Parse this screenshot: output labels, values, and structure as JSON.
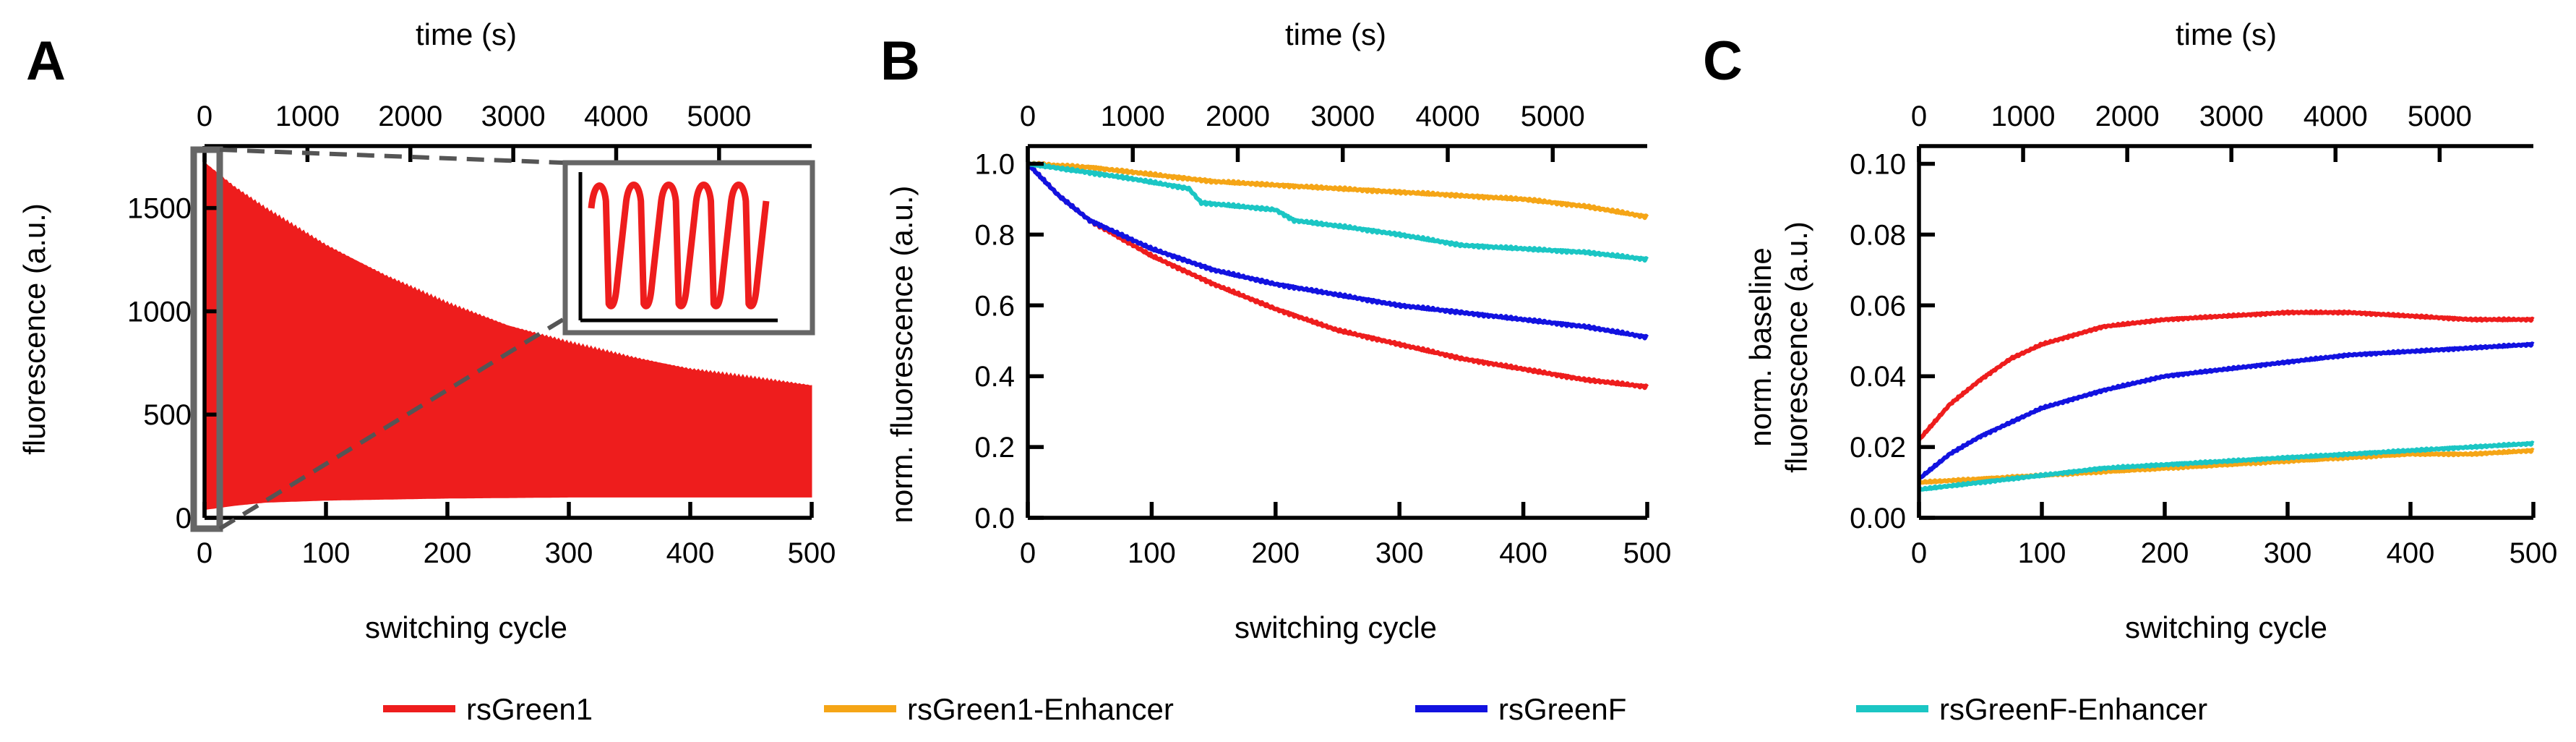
{
  "figure": {
    "legend": [
      {
        "name": "rsGreen1",
        "color": "#ee1d1d"
      },
      {
        "name": "rsGreen1-Enhancer",
        "color": "#f5a516"
      },
      {
        "name": "rsGreenF",
        "color": "#1212e0"
      },
      {
        "name": "rsGreenF-Enhancer",
        "color": "#1bc6c4"
      }
    ]
  },
  "chart_data": [
    {
      "panel": "A",
      "type": "area",
      "title": "",
      "xlabel": "switching cycle",
      "ylabel": "fluorescence (a.u.)",
      "x2label": "time (s)",
      "xlim": [
        0,
        500
      ],
      "ylim": [
        0,
        1800
      ],
      "x2lim": [
        0,
        5900
      ],
      "xticks": [
        0,
        100,
        200,
        300,
        400,
        500
      ],
      "xtick_labels": [
        "0",
        "100",
        "200",
        "300",
        "400",
        "500"
      ],
      "yticks": [
        0,
        500,
        1000,
        1500
      ],
      "ytick_labels": [
        "0",
        "500",
        "1000",
        "1500"
      ],
      "x2ticks": [
        0,
        1000,
        2000,
        3000,
        4000,
        5000
      ],
      "x2tick_labels": [
        "0",
        "1000",
        "2000",
        "3000",
        "4000",
        "5000"
      ],
      "series": [
        {
          "name": "rsGreen1 max",
          "color": "#ee1d1d",
          "x": [
            0,
            25,
            50,
            100,
            150,
            200,
            250,
            300,
            350,
            400,
            450,
            500
          ],
          "values": [
            1720,
            1600,
            1500,
            1320,
            1170,
            1040,
            930,
            850,
            780,
            720,
            680,
            640
          ]
        },
        {
          "name": "rsGreen1 min",
          "color": "#ee1d1d",
          "x": [
            0,
            25,
            50,
            100,
            200,
            300,
            400,
            500
          ],
          "values": [
            40,
            60,
            75,
            85,
            95,
            100,
            100,
            100
          ]
        }
      ],
      "annotations": {
        "inset": "zoom of first switching cycles (0-5)",
        "zoom_cycles": 5
      }
    },
    {
      "panel": "B",
      "type": "line",
      "title": "",
      "xlabel": "switching cycle",
      "ylabel": "norm. fluorescence (a.u.)",
      "x2label": "time (s)",
      "xlim": [
        0,
        500
      ],
      "ylim": [
        0,
        1.05
      ],
      "x2lim": [
        0,
        5900
      ],
      "xticks": [
        0,
        100,
        200,
        300,
        400,
        500
      ],
      "xtick_labels": [
        "0",
        "100",
        "200",
        "300",
        "400",
        "500"
      ],
      "yticks": [
        0,
        0.2,
        0.4,
        0.6,
        0.8,
        1.0
      ],
      "ytick_labels": [
        "0.0",
        "0.2",
        "0.4",
        "0.6",
        "0.8",
        "1.0"
      ],
      "x2ticks": [
        0,
        1000,
        2000,
        3000,
        4000,
        5000
      ],
      "x2tick_labels": [
        "0",
        "1000",
        "2000",
        "3000",
        "4000",
        "5000"
      ],
      "series": [
        {
          "name": "rsGreen1",
          "color": "#ee1d1d",
          "x": [
            0,
            25,
            50,
            100,
            150,
            200,
            250,
            300,
            350,
            400,
            450,
            500
          ],
          "values": [
            1.0,
            0.91,
            0.84,
            0.74,
            0.66,
            0.59,
            0.53,
            0.49,
            0.45,
            0.42,
            0.39,
            0.37
          ]
        },
        {
          "name": "rsGreen1-Enhancer",
          "color": "#f5a516",
          "x": [
            0,
            50,
            100,
            150,
            200,
            250,
            300,
            350,
            400,
            450,
            500
          ],
          "values": [
            1.0,
            0.99,
            0.97,
            0.95,
            0.94,
            0.93,
            0.92,
            0.91,
            0.9,
            0.88,
            0.85
          ]
        },
        {
          "name": "rsGreenF",
          "color": "#1212e0",
          "x": [
            0,
            25,
            50,
            75,
            100,
            150,
            200,
            250,
            300,
            350,
            400,
            450,
            500
          ],
          "values": [
            1.0,
            0.91,
            0.84,
            0.8,
            0.76,
            0.7,
            0.66,
            0.63,
            0.6,
            0.58,
            0.56,
            0.54,
            0.51
          ]
        },
        {
          "name": "rsGreenF-Enhancer",
          "color": "#1bc6c4",
          "x": [
            0,
            40,
            80,
            130,
            140,
            200,
            215,
            260,
            300,
            350,
            400,
            450,
            500
          ],
          "values": [
            1.0,
            0.98,
            0.96,
            0.93,
            0.89,
            0.87,
            0.84,
            0.82,
            0.8,
            0.77,
            0.76,
            0.75,
            0.73
          ]
        }
      ]
    },
    {
      "panel": "C",
      "type": "line",
      "title": "",
      "xlabel": "switching cycle",
      "ylabel": "norm. baseline fluorescence (a.u.)",
      "ylabel_lines": [
        "norm. baseline",
        "fluorescence (a.u.)"
      ],
      "x2label": "time (s)",
      "xlim": [
        0,
        500
      ],
      "ylim": [
        0,
        0.105
      ],
      "x2lim": [
        0,
        5900
      ],
      "xticks": [
        0,
        100,
        200,
        300,
        400,
        500
      ],
      "xtick_labels": [
        "0",
        "100",
        "200",
        "300",
        "400",
        "500"
      ],
      "yticks": [
        0,
        0.02,
        0.04,
        0.06,
        0.08,
        0.1
      ],
      "ytick_labels": [
        "0.00",
        "0.02",
        "0.04",
        "0.06",
        "0.08",
        "0.10"
      ],
      "x2ticks": [
        0,
        1000,
        2000,
        3000,
        4000,
        5000
      ],
      "x2tick_labels": [
        "0",
        "1000",
        "2000",
        "3000",
        "4000",
        "5000"
      ],
      "series": [
        {
          "name": "rsGreen1",
          "color": "#ee1d1d",
          "x": [
            0,
            25,
            50,
            75,
            100,
            150,
            200,
            250,
            300,
            350,
            400,
            450,
            500
          ],
          "values": [
            0.022,
            0.032,
            0.039,
            0.045,
            0.049,
            0.054,
            0.056,
            0.057,
            0.058,
            0.058,
            0.057,
            0.056,
            0.056
          ]
        },
        {
          "name": "rsGreen1-Enhancer",
          "color": "#f5a516",
          "x": [
            0,
            50,
            100,
            150,
            200,
            250,
            300,
            350,
            400,
            450,
            500
          ],
          "values": [
            0.01,
            0.011,
            0.012,
            0.013,
            0.014,
            0.015,
            0.016,
            0.017,
            0.018,
            0.018,
            0.019
          ]
        },
        {
          "name": "rsGreenF",
          "color": "#1212e0",
          "x": [
            0,
            25,
            50,
            100,
            150,
            200,
            250,
            300,
            350,
            400,
            450,
            500
          ],
          "values": [
            0.011,
            0.018,
            0.023,
            0.031,
            0.036,
            0.04,
            0.042,
            0.044,
            0.046,
            0.047,
            0.048,
            0.049
          ]
        },
        {
          "name": "rsGreenF-Enhancer",
          "color": "#1bc6c4",
          "x": [
            0,
            50,
            100,
            150,
            200,
            250,
            300,
            350,
            400,
            450,
            500
          ],
          "values": [
            0.008,
            0.01,
            0.012,
            0.014,
            0.015,
            0.016,
            0.017,
            0.018,
            0.019,
            0.02,
            0.021
          ]
        }
      ]
    }
  ]
}
